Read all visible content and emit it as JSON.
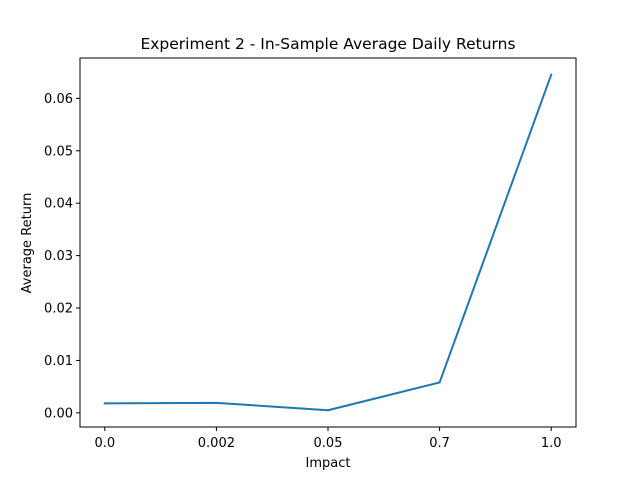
{
  "chart_data": {
    "type": "line",
    "title": "Experiment 2 - In-Sample Average Daily Returns",
    "xlabel": "Impact",
    "ylabel": "Average Return",
    "categories": [
      "0.0",
      "0.002",
      "0.05",
      "0.7",
      "1.0"
    ],
    "series": [
      {
        "name": "",
        "color": "#1f77b4",
        "values": [
          0.0018,
          0.0019,
          0.0005,
          0.0058,
          0.0645
        ]
      }
    ],
    "ylim": [
      -0.0027,
      0.0677
    ],
    "yticks": [
      0.0,
      0.01,
      0.02,
      0.03,
      0.04,
      0.05,
      0.06
    ],
    "ytick_labels": [
      "0.00",
      "0.01",
      "0.02",
      "0.03",
      "0.04",
      "0.05",
      "0.06"
    ],
    "grid": false,
    "legend": "none"
  }
}
